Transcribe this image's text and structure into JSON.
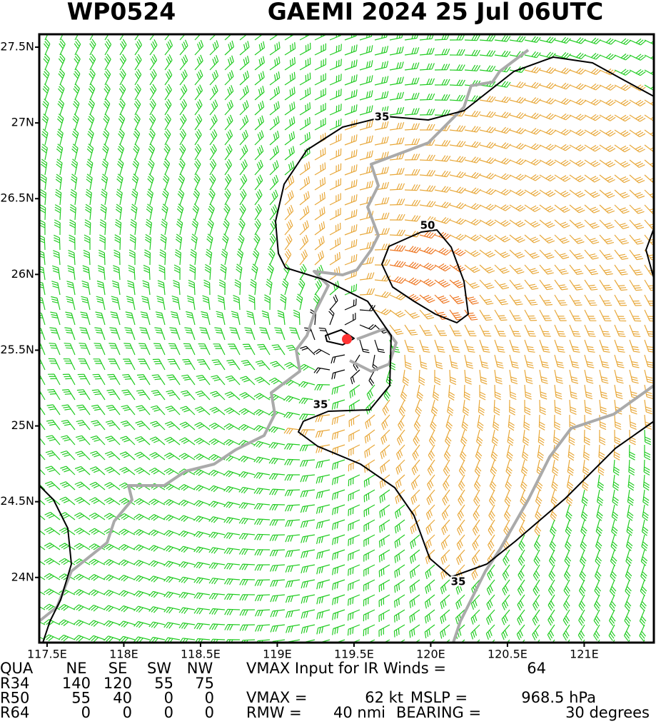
{
  "header": {
    "id": "WP0524",
    "title": "GAEMI 2024 25 Jul 06UTC"
  },
  "map": {
    "lat_range": [
      23.57,
      27.585
    ],
    "lon_range": [
      117.449,
      121.454
    ],
    "lat_ticks": [
      {
        "value": 27.5,
        "label": "27.5N"
      },
      {
        "value": 27,
        "label": "27N"
      },
      {
        "value": 26.5,
        "label": "26.5N"
      },
      {
        "value": 26,
        "label": "26N"
      },
      {
        "value": 25.5,
        "label": "25.5N"
      },
      {
        "value": 25,
        "label": "25N"
      },
      {
        "value": 24.5,
        "label": "24.5N"
      },
      {
        "value": 24,
        "label": "24N"
      }
    ],
    "lon_ticks": [
      {
        "value": 117.5,
        "label": "117.5E"
      },
      {
        "value": 118,
        "label": "118E"
      },
      {
        "value": 118.5,
        "label": "118.5E"
      },
      {
        "value": 119,
        "label": "119E"
      },
      {
        "value": 119.5,
        "label": "119.5E"
      },
      {
        "value": 120,
        "label": "120E"
      },
      {
        "value": 120.5,
        "label": "120.5E"
      },
      {
        "value": 121,
        "label": "121E"
      }
    ],
    "contour_labels": [
      "35",
      "50",
      "35",
      "35"
    ]
  },
  "table": {
    "columns": [
      "QUA",
      "NE",
      "SE",
      "SW",
      "NW"
    ],
    "rows": [
      [
        "R34",
        "140",
        "120",
        "55",
        "75"
      ],
      [
        "R50",
        "55",
        "40",
        "0",
        "0"
      ],
      [
        "R64",
        "0",
        "0",
        "0",
        "0"
      ]
    ]
  },
  "info": {
    "vmax_input_label": "VMAX Input for IR Winds =",
    "vmax_input": "64",
    "vmax_label": "VMAX =",
    "vmax": "62 kt",
    "mslp_label": "MSLP =",
    "mslp": "968.5 hPa",
    "rmw_label": "RMW =",
    "rmw": "40 nmi",
    "bearing_label": "BEARING =",
    "bearing": "30 degrees"
  }
}
